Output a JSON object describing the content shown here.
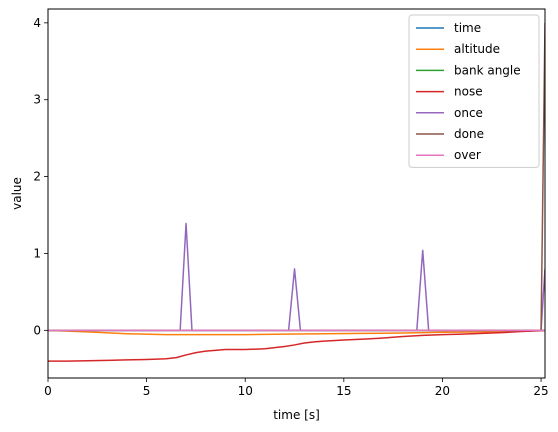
{
  "chart_data": {
    "type": "line",
    "xlabel": "time [s]",
    "ylabel": "value",
    "xlim": [
      0,
      25.2
    ],
    "ylim": [
      -0.62,
      4.18
    ],
    "xticks": [
      0,
      5,
      10,
      15,
      20,
      25
    ],
    "yticks": [
      0,
      1,
      2,
      3,
      4
    ],
    "grid": false,
    "legend_position": "top-right",
    "series": [
      {
        "name": "time",
        "color": "#1f77b4",
        "x": [
          0,
          25.2
        ],
        "y": [
          0,
          0
        ]
      },
      {
        "name": "altitude",
        "color": "#ff7f0e",
        "x": [
          0,
          2,
          4,
          6,
          8,
          10,
          12,
          14,
          16,
          18,
          20,
          22,
          24,
          25.2
        ],
        "y": [
          0,
          -0.02,
          -0.045,
          -0.055,
          -0.055,
          -0.055,
          -0.05,
          -0.045,
          -0.04,
          -0.035,
          -0.025,
          -0.02,
          -0.01,
          0
        ]
      },
      {
        "name": "bank angle",
        "color": "#2ca02c",
        "x": [
          0,
          25.2
        ],
        "y": [
          0,
          0
        ]
      },
      {
        "name": "nose",
        "color": "#d62728",
        "x": [
          0,
          1,
          2,
          3,
          4,
          5,
          6,
          6.5,
          7,
          7.5,
          8,
          9,
          10,
          11,
          12,
          12.5,
          13,
          13.5,
          14,
          15,
          16,
          17,
          18,
          19,
          20,
          21,
          22,
          23,
          24,
          25,
          25.2
        ],
        "y": [
          -0.4,
          -0.4,
          -0.395,
          -0.39,
          -0.385,
          -0.38,
          -0.37,
          -0.355,
          -0.32,
          -0.29,
          -0.27,
          -0.25,
          -0.25,
          -0.24,
          -0.21,
          -0.19,
          -0.165,
          -0.15,
          -0.14,
          -0.125,
          -0.115,
          -0.1,
          -0.08,
          -0.065,
          -0.055,
          -0.05,
          -0.04,
          -0.03,
          -0.015,
          -0.005,
          0
        ]
      },
      {
        "name": "once",
        "color": "#9467bd",
        "x": [
          0,
          6.7,
          7.0,
          7.3,
          12.2,
          12.5,
          12.8,
          18.7,
          19.0,
          19.3,
          25.0,
          25.2
        ],
        "y": [
          0,
          0,
          1.39,
          0,
          0,
          0.8,
          0,
          0,
          1.04,
          0,
          0,
          0.8
        ]
      },
      {
        "name": "done",
        "color": "#8c564b",
        "x": [
          0,
          25.0,
          25.2
        ],
        "y": [
          0,
          0,
          4.0
        ]
      },
      {
        "name": "over",
        "color": "#e377c2",
        "x": [
          0,
          25.2
        ],
        "y": [
          0,
          0
        ]
      }
    ]
  }
}
